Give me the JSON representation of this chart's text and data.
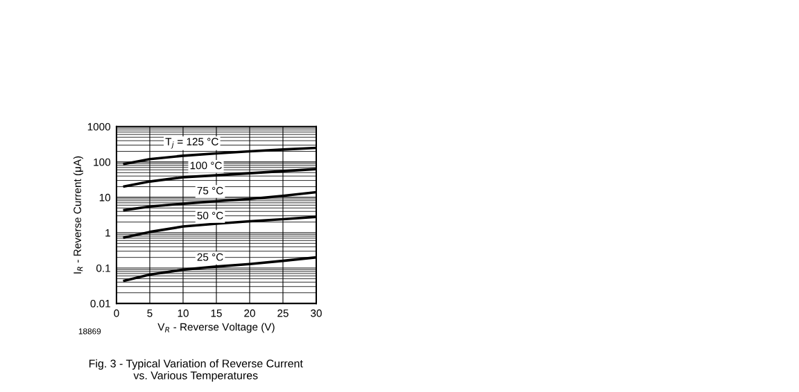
{
  "chart_data": {
    "type": "line",
    "log": "y",
    "xlabel": "V$_{R}$ - Reverse Voltage (V)",
    "ylabel": "I$_{R}$ - Reverse Current (μA)",
    "x": [
      1,
      5,
      10,
      15,
      20,
      25,
      30
    ],
    "series": [
      {
        "color": "#000000",
        "values": [
          87,
          120,
          150,
          175,
          200,
          225,
          250
        ]
      },
      {
        "color": "#000000",
        "values": [
          20,
          28,
          37,
          42,
          48,
          55,
          63
        ]
      },
      {
        "color": "#000000",
        "values": [
          4.3,
          5.5,
          6.6,
          7.8,
          9,
          11,
          14
        ]
      },
      {
        "color": "#000000",
        "values": [
          0.72,
          1.05,
          1.5,
          1.8,
          2.1,
          2.4,
          2.8
        ]
      },
      {
        "color": "#000000",
        "values": [
          0.043,
          0.065,
          0.09,
          0.11,
          0.13,
          0.16,
          0.2
        ]
      }
    ],
    "xlim": [
      0,
      30
    ],
    "xticks": [
      0,
      5,
      10,
      15,
      20,
      25,
      30
    ],
    "ylim": [
      0.01,
      1000
    ],
    "yticks": [
      0.01,
      0.1,
      1,
      10,
      100,
      1000
    ],
    "grid": true,
    "marker": "none",
    "line_style": "solid",
    "legend": false,
    "annotations": [
      "T$_{j}$ = 125 °C",
      "100 °C",
      "75 °C",
      "50 °C",
      "25 °C",
      "18869",
      "Fig. 3 - Typical Variation of Reverse Current\nvs. Various Temperatures"
    ]
  }
}
